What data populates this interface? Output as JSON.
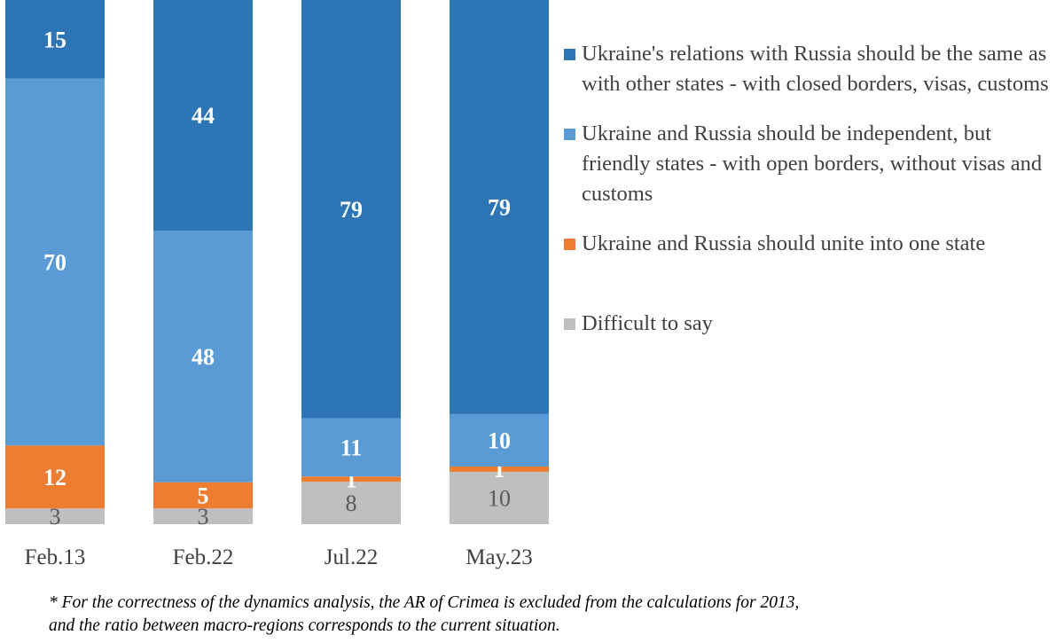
{
  "chart_data": {
    "type": "bar",
    "stacked": true,
    "normalized": true,
    "categories": [
      "Feb.13",
      "Feb.22",
      "Jul.22",
      "May.23"
    ],
    "series": [
      {
        "name": "Difficult to say",
        "color": "#BFBFBF",
        "label_color": "#595959",
        "label_bold": false,
        "values": [
          3,
          3,
          8,
          10
        ]
      },
      {
        "name": "Ukraine and Russia should unite into one state",
        "color": "#ED7D31",
        "label_color": "#FFFFFF",
        "label_bold": true,
        "values": [
          12,
          5,
          1,
          1
        ]
      },
      {
        "name": "Ukraine and Russia should be independent, but friendly states - with open borders, without visas and customs",
        "color": "#5B9BD5",
        "label_color": "#FFFFFF",
        "label_bold": true,
        "values": [
          70,
          48,
          11,
          10
        ]
      },
      {
        "name": "Ukraine's relations with Russia should be the same as with other states - with closed borders, visas, customs",
        "color": "#2E75B6",
        "label_color": "#FFFFFF",
        "label_bold": true,
        "values": [
          15,
          44,
          79,
          79
        ]
      }
    ],
    "legend_order": [
      3,
      2,
      1,
      0
    ],
    "legend_placement": "right",
    "ylim": [
      0,
      100
    ],
    "grid": false
  },
  "footnote": {
    "line1": "* For the correctness of the dynamics analysis, the AR of Crimea is excluded from the calculations for 2013,",
    "line2": "and the ratio between macro-regions corresponds to the current situation."
  }
}
